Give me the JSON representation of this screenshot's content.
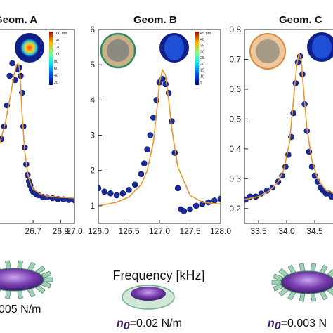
{
  "x_axis_label": "Frequency [kHz]",
  "chart_data": [
    {
      "type": "scatter",
      "title": "Geom. A",
      "xlabel": "Frequency [kHz]",
      "ylabel": "",
      "xlim": [
        26.45,
        27.0
      ],
      "ylim": [
        0.8,
        5.4
      ],
      "x_ticks": [
        "26.7",
        "26.9",
        "27.0"
      ],
      "y_ticks": [],
      "colorbar_ticks": [
        "160 nm",
        "140",
        "120",
        "100",
        "80",
        "60",
        "40",
        "20"
      ],
      "series": [
        {
          "marker": "circle",
          "color": "#1a2b9b",
          "x": [
            26.47,
            26.49,
            26.51,
            26.53,
            26.55,
            26.57,
            26.59,
            26.6,
            26.61,
            26.62,
            26.63,
            26.64,
            26.65,
            26.66,
            26.67,
            26.68,
            26.69,
            26.7,
            26.72,
            26.74,
            26.77,
            26.8,
            26.84,
            26.88,
            26.92,
            26.96,
            27.0
          ],
          "y": [
            2.8,
            3.1,
            3.6,
            4.3,
            4.6,
            4.2,
            4.45,
            4.5,
            4.3,
            3.9,
            3.1,
            2.6,
            2.2,
            1.95,
            1.8,
            1.7,
            1.6,
            1.55,
            1.5,
            1.47,
            1.43,
            1.42,
            1.4,
            1.38,
            1.37,
            1.36,
            1.35
          ]
        },
        {
          "marker": "line",
          "color": "#e8962e",
          "x": [
            26.45,
            26.5,
            26.54,
            26.56,
            26.58,
            26.59,
            26.6,
            26.61,
            26.62,
            26.64,
            26.66,
            26.68,
            26.7,
            26.75,
            26.8,
            26.9,
            27.0
          ],
          "y": [
            2.6,
            3.2,
            3.9,
            4.3,
            4.55,
            4.6,
            4.5,
            4.1,
            3.4,
            2.5,
            2.0,
            1.75,
            1.62,
            1.5,
            1.45,
            1.42,
            1.4
          ]
        }
      ]
    },
    {
      "type": "scatter",
      "title": "Geom. B",
      "xlabel": "Frequency [kHz]",
      "ylabel": "",
      "xlim": [
        126.0,
        128.0
      ],
      "ylim": [
        0.5,
        6.0
      ],
      "x_ticks": [
        "126.0",
        "126.5",
        "127.0",
        "127.5",
        "128.0"
      ],
      "y_ticks": [
        "1",
        "2",
        "3",
        "4",
        "5",
        "6"
      ],
      "colorbar_ticks": [
        "45 nm",
        "40",
        "35",
        "30",
        "25",
        "20",
        "15",
        "10",
        "5"
      ],
      "series": [
        {
          "marker": "circle",
          "color": "#1a2b9b",
          "x": [
            126.0,
            126.1,
            126.2,
            126.3,
            126.4,
            126.5,
            126.6,
            126.7,
            126.75,
            126.8,
            126.85,
            126.9,
            126.95,
            127.0,
            127.05,
            127.1,
            127.15,
            127.2,
            127.25,
            127.3,
            127.35,
            127.4,
            127.5,
            127.6,
            127.7,
            127.8,
            127.9,
            128.0
          ],
          "y": [
            1.5,
            1.4,
            1.35,
            1.3,
            1.35,
            1.45,
            1.6,
            1.9,
            2.2,
            2.6,
            3.0,
            3.5,
            4.0,
            4.5,
            4.6,
            4.45,
            4.2,
            3.4,
            2.5,
            1.5,
            0.9,
            0.85,
            0.9,
            1.0,
            1.05,
            1.1,
            1.15,
            1.2
          ]
        },
        {
          "marker": "line",
          "color": "#e8962e",
          "x": [
            126.0,
            126.3,
            126.5,
            126.7,
            126.8,
            126.9,
            126.95,
            127.0,
            127.05,
            127.1,
            127.15,
            127.2,
            127.3,
            127.5,
            127.7,
            128.0
          ],
          "y": [
            1.0,
            1.1,
            1.25,
            1.6,
            2.0,
            2.8,
            3.6,
            4.5,
            4.85,
            4.7,
            4.0,
            3.2,
            2.1,
            1.3,
            1.1,
            1.05
          ]
        }
      ]
    },
    {
      "type": "scatter",
      "title": "Geom. C",
      "xlabel": "Frequency [kHz]",
      "ylabel": "",
      "xlim": [
        33.25,
        34.85
      ],
      "ylim": [
        0.15,
        0.8
      ],
      "x_ticks": [
        "33.5",
        "34.0",
        "34.5"
      ],
      "y_ticks": [
        "0.2",
        "0.3",
        "0.4",
        "0.5",
        "0.6",
        "0.7",
        "0.8"
      ],
      "colorbar_ticks": [],
      "series": [
        {
          "marker": "circle",
          "color": "#1a2b9b",
          "x": [
            33.27,
            33.35,
            33.45,
            33.55,
            33.65,
            33.75,
            33.85,
            33.92,
            33.98,
            34.03,
            34.08,
            34.12,
            34.16,
            34.2,
            34.24,
            34.28,
            34.32,
            34.36,
            34.4,
            34.45,
            34.5,
            34.55,
            34.6,
            34.65,
            34.7,
            34.75,
            34.8
          ],
          "y": [
            0.23,
            0.24,
            0.24,
            0.25,
            0.26,
            0.27,
            0.29,
            0.31,
            0.34,
            0.38,
            0.44,
            0.52,
            0.62,
            0.69,
            0.71,
            0.65,
            0.55,
            0.46,
            0.39,
            0.34,
            0.31,
            0.29,
            0.27,
            0.26,
            0.25,
            0.25,
            0.24
          ]
        },
        {
          "marker": "line",
          "color": "#e8962e",
          "x": [
            33.25,
            33.5,
            33.7,
            33.85,
            33.95,
            34.05,
            34.12,
            34.18,
            34.22,
            34.26,
            34.3,
            34.36,
            34.45,
            34.55,
            34.7,
            34.85
          ],
          "y": [
            0.23,
            0.24,
            0.26,
            0.29,
            0.33,
            0.42,
            0.56,
            0.68,
            0.72,
            0.7,
            0.6,
            0.47,
            0.36,
            0.3,
            0.26,
            0.25
          ]
        }
      ]
    }
  ],
  "annotations": {
    "left_tension": "005 N/m",
    "middle_tension_symbol": "n",
    "middle_tension_sub": "0",
    "middle_tension_value": "=0.02 N/m",
    "right_tension_symbol": "n",
    "right_tension_sub": "0",
    "right_tension_value": "=0.003 N"
  },
  "colors": {
    "data_points": "#1a2b9b",
    "fit_curve": "#e8962e",
    "membrane_purple": "#7a3fb0",
    "membrane_green": "#6fae88"
  }
}
